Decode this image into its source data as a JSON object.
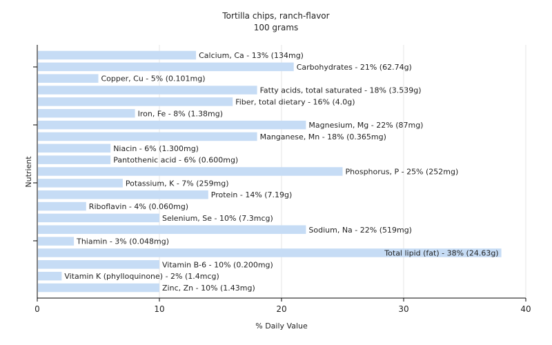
{
  "chart_data": {
    "type": "bar",
    "orientation": "horizontal",
    "title": "Tortilla chips, ranch-flavor",
    "subtitle": "100 grams",
    "xlabel": "% Daily Value",
    "ylabel": "Nutrient",
    "xlim": [
      0,
      40
    ],
    "xticks": [
      0,
      10,
      20,
      30,
      40
    ],
    "grid": true,
    "bar_color": "#c6dcf5",
    "grid_color": "#e6e6e6",
    "categories": [
      "Calcium, Ca",
      "Carbohydrates",
      "Copper, Cu",
      "Fatty acids, total saturated",
      "Fiber, total dietary",
      "Iron, Fe",
      "Magnesium, Mg",
      "Manganese, Mn",
      "Niacin",
      "Pantothenic acid",
      "Phosphorus, P",
      "Potassium, K",
      "Protein",
      "Riboflavin",
      "Selenium, Se",
      "Sodium, Na",
      "Thiamin",
      "Total lipid (fat)",
      "Vitamin B-6",
      "Vitamin K (phylloquinone)",
      "Zinc, Zn"
    ],
    "values": [
      13,
      21,
      5,
      18,
      16,
      8,
      22,
      18,
      6,
      6,
      25,
      7,
      14,
      4,
      10,
      22,
      3,
      38,
      10,
      2,
      10
    ],
    "labels": [
      "Calcium, Ca - 13% (134mg)",
      "Carbohydrates - 21% (62.74g)",
      "Copper, Cu - 5% (0.101mg)",
      "Fatty acids, total saturated - 18% (3.539g)",
      "Fiber, total dietary - 16% (4.0g)",
      "Iron, Fe - 8% (1.38mg)",
      "Magnesium, Mg - 22% (87mg)",
      "Manganese, Mn - 18% (0.365mg)",
      "Niacin - 6% (1.300mg)",
      "Pantothenic acid - 6% (0.600mg)",
      "Phosphorus, P - 25% (252mg)",
      "Potassium, K - 7% (259mg)",
      "Protein - 14% (7.19g)",
      "Riboflavin - 4% (0.060mg)",
      "Selenium, Se - 10% (7.3mcg)",
      "Sodium, Na - 22% (519mg)",
      "Thiamin - 3% (0.048mg)",
      "Total lipid (fat) - 38% (24.63g)",
      "Vitamin B-6 - 10% (0.200mg)",
      "Vitamin K (phylloquinone) - 2% (1.4mcg)",
      "Zinc, Zn - 10% (1.43mg)"
    ]
  }
}
